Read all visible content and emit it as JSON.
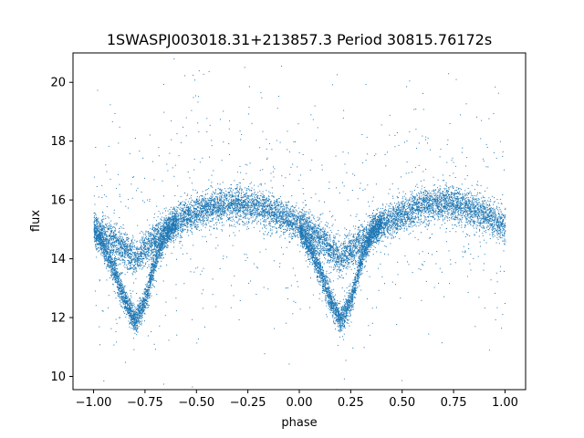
{
  "chart_data": {
    "type": "scatter",
    "title": "1SWASPJ003018.31+213857.3 Period 30815.76172s",
    "xlabel": "phase",
    "ylabel": "flux",
    "xlim": [
      -1.1,
      1.1
    ],
    "ylim": [
      9.55,
      21.0
    ],
    "xticks": [
      -1.0,
      -0.75,
      -0.5,
      -0.25,
      0.0,
      0.25,
      0.5,
      0.75,
      1.0
    ],
    "xtick_labels": [
      "−1.00",
      "−0.75",
      "−0.50",
      "−0.25",
      "0.00",
      "0.25",
      "0.50",
      "0.75",
      "1.00"
    ],
    "yticks": [
      10,
      12,
      14,
      16,
      18,
      20
    ],
    "ytick_labels": [
      "10",
      "12",
      "14",
      "16",
      "18",
      "20"
    ],
    "grid": false,
    "marker_color": "#1f77b4",
    "series": [
      {
        "description_points": "phase-folded light curve; dense band with two branches near minima",
        "upper_branch": {
          "x": [
            -1.0,
            -0.9,
            -0.8,
            -0.7,
            -0.6,
            -0.5,
            -0.4,
            -0.3,
            -0.2,
            -0.1,
            0.0,
            0.1,
            0.2,
            0.3,
            0.4,
            0.5,
            0.6,
            0.7,
            0.8,
            0.9,
            1.0
          ],
          "y": [
            15.1,
            14.6,
            14.0,
            14.7,
            15.3,
            15.6,
            15.8,
            15.9,
            15.8,
            15.5,
            15.2,
            14.7,
            14.0,
            14.6,
            15.2,
            15.5,
            15.8,
            15.9,
            15.8,
            15.5,
            15.1
          ]
        },
        "lower_branch": {
          "x": [
            -1.0,
            -0.95,
            -0.9,
            -0.85,
            -0.8,
            -0.75,
            -0.7,
            -0.65,
            -0.6,
            0.0,
            0.05,
            0.1,
            0.15,
            0.2,
            0.25,
            0.3,
            0.35,
            0.4
          ],
          "y": [
            15.0,
            14.4,
            13.6,
            12.6,
            11.9,
            12.6,
            14.0,
            14.9,
            15.2,
            15.0,
            14.4,
            13.6,
            12.6,
            11.9,
            12.6,
            14.0,
            14.9,
            15.2
          ]
        }
      }
    ]
  }
}
